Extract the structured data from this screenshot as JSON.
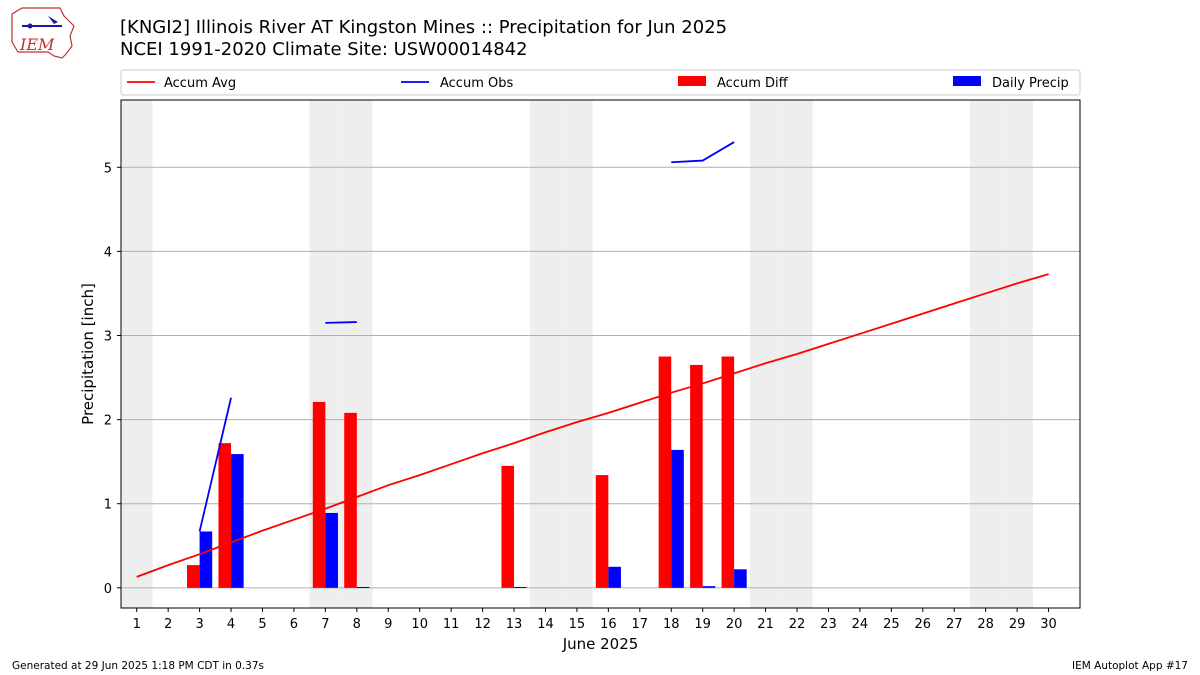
{
  "header": {
    "title_line1": "[KNGI2] Illinois River  AT Kingston Mines :: Precipitation for Jun 2025",
    "title_line2": "NCEI 1991-2020 Climate Site: USW00014842",
    "logo_text": "IEM"
  },
  "footer": {
    "generated": "Generated at 29 Jun 2025 1:18 PM CDT in 0.37s",
    "app": "IEM Autoplot App #17"
  },
  "colors": {
    "accum_avg": "#ff0000",
    "accum_obs": "#0000ff",
    "accum_diff": "#ff0000",
    "daily_precip": "#0000ff",
    "weekend_shade": "#eeeeee",
    "grid": "#b0b0b0"
  },
  "chart_data": {
    "type": "bar",
    "xlabel": "June 2025",
    "ylabel": "Precipitation [inch]",
    "xlim": [
      0.5,
      31.0
    ],
    "ylim": [
      -0.24,
      5.8
    ],
    "y_ticks": [
      0,
      1,
      2,
      3,
      4,
      5
    ],
    "x_ticks": [
      1,
      2,
      3,
      4,
      5,
      6,
      7,
      8,
      9,
      10,
      11,
      12,
      13,
      14,
      15,
      16,
      17,
      18,
      19,
      20,
      21,
      22,
      23,
      24,
      25,
      26,
      27,
      28,
      29,
      30
    ],
    "grid": "horizontal",
    "legend_placement": "top",
    "legend": [
      "Accum Avg",
      "Accum Obs",
      "Accum Diff",
      "Daily Precip"
    ],
    "weekend_days": [
      1,
      7,
      8,
      14,
      15,
      21,
      22,
      28,
      29
    ],
    "accum_avg": {
      "name": "Accum Avg",
      "x": [
        1,
        2,
        3,
        4,
        5,
        6,
        7,
        8,
        9,
        10,
        11,
        12,
        13,
        14,
        15,
        16,
        17,
        18,
        19,
        20,
        21,
        22,
        23,
        24,
        25,
        26,
        27,
        28,
        29,
        30
      ],
      "y": [
        0.13,
        0.27,
        0.4,
        0.54,
        0.68,
        0.81,
        0.94,
        1.08,
        1.22,
        1.34,
        1.47,
        1.6,
        1.72,
        1.85,
        1.97,
        2.08,
        2.2,
        2.32,
        2.43,
        2.55,
        2.67,
        2.78,
        2.9,
        3.02,
        3.14,
        3.26,
        3.38,
        3.5,
        3.62,
        3.73
      ]
    },
    "accum_obs": {
      "name": "Accum Obs",
      "segments": [
        {
          "x": [
            3,
            4
          ],
          "y": [
            0.67,
            2.26
          ]
        },
        {
          "x": [
            7,
            8
          ],
          "y": [
            3.15,
            3.16
          ]
        },
        {
          "x": [
            18,
            19,
            20
          ],
          "y": [
            5.06,
            5.08,
            5.3
          ]
        }
      ]
    },
    "accum_diff": {
      "name": "Accum Diff",
      "x": [
        3,
        4,
        7,
        8,
        13,
        16,
        18,
        19,
        20
      ],
      "values": [
        0.27,
        1.72,
        2.21,
        2.08,
        1.45,
        1.34,
        2.75,
        2.65,
        2.75
      ]
    },
    "daily_precip": {
      "name": "Daily Precip",
      "x": [
        3,
        4,
        7,
        8,
        13,
        16,
        18,
        19,
        20
      ],
      "values": [
        0.67,
        1.59,
        0.89,
        0.01,
        0.01,
        0.25,
        1.64,
        0.02,
        0.22
      ]
    }
  }
}
